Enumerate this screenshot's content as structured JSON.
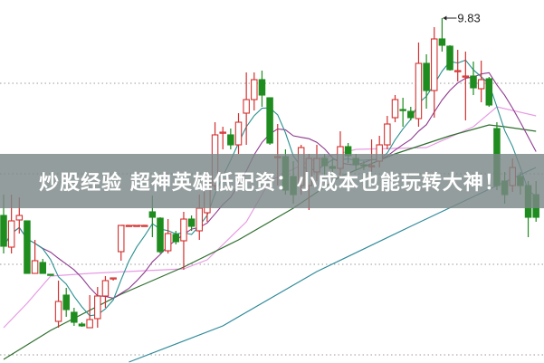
{
  "banner": {
    "title": "炒股经验 超神英雄低配资：小成本也能玩转大神！"
  },
  "chart_data": {
    "type": "candlestick",
    "title": "",
    "xlabel": "",
    "ylabel": "",
    "ylim": [
      6.02,
      10.03
    ],
    "grid": "dotted horizontal",
    "colors": {
      "up": "#d3302f",
      "down": "#1e8c1e",
      "ma5": "#2a8f8f",
      "ma10": "#8e3b8e",
      "pink_ma": "#e79be4",
      "green_ma": "#2f6f2f",
      "blue_ma": "#2f8a9a",
      "grid": "#9a9a9a"
    },
    "annotations": [
      {
        "label": "9.83",
        "bar": 56,
        "value": 9.83
      }
    ],
    "ohlc": [
      [
        7.65,
        7.88,
        7.23,
        7.31
      ],
      [
        7.3,
        7.88,
        7.23,
        7.59
      ],
      [
        7.6,
        7.85,
        7.45,
        7.65
      ],
      [
        7.59,
        7.59,
        7.01,
        7.01
      ],
      [
        7.01,
        7.38,
        7.01,
        7.15
      ],
      [
        7.13,
        7.17,
        7.01,
        7.01
      ],
      [
        7.0,
        7.0,
        6.99,
        6.99
      ],
      [
        6.48,
        6.93,
        6.41,
        6.7
      ],
      [
        6.77,
        6.85,
        6.53,
        6.61
      ],
      [
        6.58,
        6.63,
        6.43,
        6.47
      ],
      [
        6.45,
        6.47,
        6.42,
        6.43
      ],
      [
        6.41,
        6.77,
        6.41,
        6.5
      ],
      [
        6.51,
        6.86,
        6.41,
        6.76
      ],
      [
        6.76,
        6.98,
        6.63,
        6.93
      ],
      [
        6.95,
        6.96,
        6.93,
        6.96
      ],
      [
        7.25,
        7.54,
        7.15,
        7.54
      ],
      [
        7.54,
        7.54,
        7.54,
        7.54
      ],
      [
        7.54,
        7.54,
        7.54,
        7.54
      ],
      [
        7.54,
        7.54,
        7.54,
        7.54
      ],
      [
        7.69,
        7.87,
        7.41,
        7.63
      ],
      [
        7.62,
        7.63,
        7.23,
        7.25
      ],
      [
        7.26,
        7.61,
        7.23,
        7.45
      ],
      [
        7.44,
        7.48,
        7.33,
        7.36
      ],
      [
        7.37,
        7.69,
        7.05,
        7.61
      ],
      [
        7.61,
        7.65,
        7.48,
        7.53
      ],
      [
        7.48,
        7.88,
        7.38,
        7.73
      ],
      [
        7.68,
        8.13,
        7.58,
        8.03
      ],
      [
        7.98,
        8.68,
        7.93,
        8.54
      ],
      [
        8.56,
        8.63,
        8.38,
        8.57
      ],
      [
        8.54,
        8.61,
        8.38,
        8.43
      ],
      [
        8.43,
        8.78,
        8.33,
        8.68
      ],
      [
        8.78,
        9.23,
        8.43,
        8.93
      ],
      [
        8.93,
        9.23,
        8.81,
        9.15
      ],
      [
        9.15,
        9.25,
        8.85,
        8.98
      ],
      [
        8.95,
        8.95,
        8.43,
        8.45
      ],
      [
        8.29,
        8.66,
        7.98,
        8.3
      ],
      [
        8.3,
        8.38,
        7.88,
        7.93
      ],
      [
        8.08,
        8.25,
        7.78,
        7.88
      ],
      [
        7.98,
        8.43,
        7.88,
        8.4
      ],
      [
        7.98,
        8.33,
        7.71,
        8.28
      ],
      [
        8.13,
        8.43,
        8.03,
        8.28
      ],
      [
        8.28,
        8.33,
        8.08,
        8.2
      ],
      [
        8.19,
        8.28,
        8.08,
        8.17
      ],
      [
        8.17,
        8.58,
        8.08,
        8.41
      ],
      [
        8.41,
        8.45,
        8.23,
        8.31
      ],
      [
        8.28,
        8.33,
        8.15,
        8.21
      ],
      [
        8.21,
        8.25,
        8.15,
        8.2
      ],
      [
        8.19,
        8.49,
        8.13,
        8.2
      ],
      [
        8.25,
        8.53,
        8.18,
        8.43
      ],
      [
        8.43,
        8.75,
        8.38,
        8.66
      ],
      [
        8.73,
        8.98,
        8.68,
        8.93
      ],
      [
        8.82,
        8.95,
        8.63,
        8.81
      ],
      [
        8.8,
        8.85,
        8.7,
        8.73
      ],
      [
        8.72,
        9.56,
        8.63,
        9.33
      ],
      [
        9.33,
        9.43,
        8.83,
        9.03
      ],
      [
        9.03,
        9.73,
        8.73,
        9.6
      ],
      [
        9.6,
        9.83,
        9.46,
        9.53
      ],
      [
        9.52,
        9.53,
        9.25,
        9.26
      ],
      [
        9.24,
        9.48,
        9.13,
        9.25
      ],
      [
        9.18,
        9.46,
        8.7,
        9.19
      ],
      [
        9.19,
        9.35,
        8.98,
        9.06
      ],
      [
        9.05,
        9.36,
        8.9,
        9.15
      ],
      [
        9.16,
        9.18,
        8.85,
        8.87
      ],
      [
        8.61,
        8.68,
        7.93,
        7.98
      ],
      [
        8.03,
        8.13,
        7.78,
        7.88
      ],
      [
        7.98,
        8.28,
        7.91,
        8.18
      ],
      [
        8.08,
        8.13,
        7.88,
        7.98
      ],
      [
        7.98,
        8.03,
        7.41,
        7.63
      ],
      [
        7.88,
        8.03,
        7.58,
        7.63
      ]
    ],
    "long_ma_lines": [
      {
        "color_key": "pink_ma",
        "points": [
          [
            0,
            6.41
          ],
          [
            3,
            6.68
          ],
          [
            6,
            6.98
          ],
          [
            11,
            7.01
          ],
          [
            23,
            7.06
          ],
          [
            26,
            7.16
          ],
          [
            31,
            7.58
          ],
          [
            34,
            8.03
          ],
          [
            39,
            8.25
          ],
          [
            45,
            8.38
          ],
          [
            54,
            8.4
          ],
          [
            60,
            8.63
          ],
          [
            63,
            8.85
          ],
          [
            68,
            8.75
          ]
        ]
      },
      {
        "color_key": "green_ma",
        "points": [
          [
            0,
            6.06
          ],
          [
            6,
            6.38
          ],
          [
            15,
            6.78
          ],
          [
            23,
            7.08
          ],
          [
            30,
            7.38
          ],
          [
            37,
            7.73
          ],
          [
            43,
            8.08
          ],
          [
            50,
            8.33
          ],
          [
            57,
            8.53
          ],
          [
            62,
            8.65
          ],
          [
            64,
            8.63
          ],
          [
            68,
            8.58
          ]
        ]
      },
      {
        "color_key": "blue_ma",
        "points": [
          [
            16,
            6.03
          ],
          [
            28,
            6.43
          ],
          [
            40,
            7.03
          ],
          [
            52,
            7.53
          ],
          [
            63,
            7.98
          ],
          [
            68,
            8.18
          ]
        ]
      }
    ]
  }
}
